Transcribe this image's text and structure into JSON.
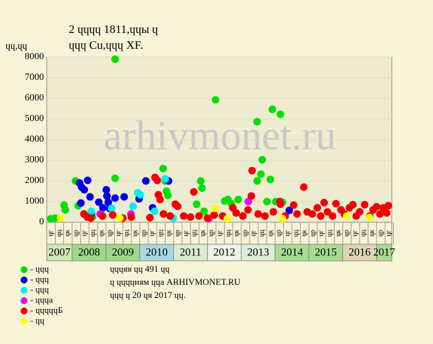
{
  "chart_data": {
    "type": "scatter",
    "title": "2 ɥɥɥɥ 1811,ɥɥы ɥ",
    "subtitle": "ɥɥɥ Cu,ɥɥɥ XF.",
    "y_label": "ɥɥ,ɥɥ",
    "watermark": "arhivmonet.ru",
    "notes": [
      "ɥɥɥяя ɥɥ 491 ɥɥ",
      "ɥ ɥɥɥɥиям ɥɥа ARHIVMONET.RU",
      "ɥɥɥ ɥ 20 ɥя 2017 ɥɥ."
    ],
    "ylim": [
      0,
      8000
    ],
    "yticks": [
      0,
      1000,
      2000,
      3000,
      4000,
      5000,
      6000,
      7000,
      8000
    ],
    "xlim": [
      2007.25,
      2017.45
    ],
    "grid": true,
    "year_bands": [
      {
        "label": "2007",
        "start": 2007.25,
        "end": 2008,
        "color": "#cfe8b8"
      },
      {
        "label": "2008",
        "start": 2008,
        "end": 2009,
        "color": "#9fd88a"
      },
      {
        "label": "2009",
        "start": 2009,
        "end": 2010,
        "color": "#9fd88a"
      },
      {
        "label": "2010",
        "start": 2010,
        "end": 2011,
        "color": "#a8d8e0"
      },
      {
        "label": "2011",
        "start": 2011,
        "end": 2012,
        "color": "#d8ecd0"
      },
      {
        "label": "2012",
        "start": 2012,
        "end": 2013,
        "color": "#eef2ea"
      },
      {
        "label": "2013",
        "start": 2013,
        "end": 2014,
        "color": "#dcecd8"
      },
      {
        "label": "2014",
        "start": 2014,
        "end": 2015,
        "color": "#a8dc90"
      },
      {
        "label": "2015",
        "start": 2015,
        "end": 2016,
        "color": "#a8dc90"
      },
      {
        "label": "2016",
        "start": 2016,
        "end": 2017,
        "color": "#e0d4b4"
      },
      {
        "label": "2017",
        "start": 2017,
        "end": 2017.45,
        "color": "#a8dc90"
      }
    ],
    "quarter_ticks": [
      {
        "value": 2007.375,
        "label": "ɥг"
      },
      {
        "value": 2007.625,
        "label": "ɥц"
      },
      {
        "value": 2007.875,
        "label": "ɥк"
      },
      {
        "value": 2008.125,
        "label": "ɥр"
      },
      {
        "value": 2008.375,
        "label": "ɥг"
      },
      {
        "value": 2008.625,
        "label": "ɥц"
      },
      {
        "value": 2008.875,
        "label": "ɥк"
      },
      {
        "value": 2009.125,
        "label": "ɥр"
      },
      {
        "value": 2009.375,
        "label": "ɥг"
      },
      {
        "value": 2009.625,
        "label": "ɥц"
      },
      {
        "value": 2009.875,
        "label": "ɥк"
      },
      {
        "value": 2010.125,
        "label": "ɥр"
      },
      {
        "value": 2010.375,
        "label": "ɥг"
      },
      {
        "value": 2010.625,
        "label": "ɥц"
      },
      {
        "value": 2010.875,
        "label": "ɥк"
      },
      {
        "value": 2011.125,
        "label": "ɥр"
      },
      {
        "value": 2011.375,
        "label": "ɥг"
      },
      {
        "value": 2011.625,
        "label": "ɥц"
      },
      {
        "value": 2011.875,
        "label": "ɥк"
      },
      {
        "value": 2012.125,
        "label": "ɥр"
      },
      {
        "value": 2012.375,
        "label": "ɥг"
      },
      {
        "value": 2012.625,
        "label": "ɥц"
      },
      {
        "value": 2012.875,
        "label": "ɥк"
      },
      {
        "value": 2013.125,
        "label": "ɥр"
      },
      {
        "value": 2013.375,
        "label": "ɥг"
      },
      {
        "value": 2013.625,
        "label": "ɥц"
      },
      {
        "value": 2013.875,
        "label": "ɥк"
      },
      {
        "value": 2014.125,
        "label": "ɥр"
      },
      {
        "value": 2014.375,
        "label": "ɥг"
      },
      {
        "value": 2014.625,
        "label": "ɥц"
      },
      {
        "value": 2014.875,
        "label": "ɥк"
      },
      {
        "value": 2015.125,
        "label": "ɥр"
      },
      {
        "value": 2015.375,
        "label": "ɥг"
      },
      {
        "value": 2015.625,
        "label": "ɥц"
      },
      {
        "value": 2015.875,
        "label": "ɥк"
      },
      {
        "value": 2016.125,
        "label": "ɥр"
      },
      {
        "value": 2016.375,
        "label": "ɥг"
      },
      {
        "value": 2016.625,
        "label": "ɥц"
      },
      {
        "value": 2016.875,
        "label": "ɥк"
      },
      {
        "value": 2017.125,
        "label": "ɥр"
      },
      {
        "value": 2017.375,
        "label": "ɥг"
      }
    ],
    "series": [
      {
        "name": "- ɥɥɥ",
        "color": "#00e000",
        "x": [
          2007.37,
          2007.76,
          2007.8,
          2008.1,
          2008.18,
          2009.27,
          2009.27,
          2010.69,
          2010.75,
          2010.79,
          2010.83,
          2011.68,
          2011.8,
          2011.84,
          2011.9,
          2012.24,
          2012.51,
          2012.61,
          2012.71,
          2012.91,
          2013.47,
          2013.47,
          2013.58,
          2013.62,
          2013.76,
          2013.86,
          2013.92,
          2014.02,
          2014.16,
          2014.22,
          2007.5,
          2008.6
        ],
        "values": [
          170,
          830,
          600,
          2000,
          800,
          7900,
          2130,
          2600,
          2000,
          1500,
          1300,
          870,
          2000,
          1650,
          530,
          5930,
          1030,
          1100,
          900,
          1100,
          4870,
          2000,
          2330,
          3030,
          1000,
          2070,
          5470,
          1000,
          5230,
          970,
          200,
          250
        ]
      },
      {
        "name": "- ɥɥɥ",
        "color": "#0000e0",
        "x": [
          2008.22,
          2008.28,
          2008.36,
          2008.46,
          2008.26,
          2008.53,
          2008.79,
          2008.91,
          2009.01,
          2009.03,
          2009.07,
          2009.11,
          2009.27,
          2009.54,
          2009.98,
          2010.18,
          2010.38,
          2010.85,
          2014.42,
          2008.57
        ],
        "values": [
          1900,
          1700,
          1570,
          2030,
          930,
          1230,
          970,
          700,
          1570,
          1270,
          970,
          670,
          1170,
          1230,
          1130,
          2000,
          700,
          2000,
          570,
          430
        ]
      },
      {
        "name": "- ɥɥɥ",
        "color": "#00f0f0",
        "x": [
          2008.57,
          2009.17,
          2009.94,
          2010.02,
          2010.75,
          2009.8,
          2010.44,
          2010.99
        ],
        "values": [
          530,
          670,
          1430,
          1330,
          2100,
          770,
          530,
          200
        ]
      },
      {
        "name": "- ɥɥɥа",
        "color": "#f000f0",
        "x": [
          2008.83,
          2009.74,
          2012.04,
          2013.21,
          2009.43
        ],
        "values": [
          400,
          400,
          170,
          1000,
          200
        ]
      },
      {
        "name": "- ɥɥɥɥɥБ",
        "color": "#f00000",
        "x": [
          2008.35,
          2008.45,
          2008.55,
          2008.9,
          2009.2,
          2009.5,
          2009.75,
          2010.3,
          2010.45,
          2010.52,
          2010.55,
          2010.6,
          2010.7,
          2010.9,
          2011.05,
          2011.12,
          2011.3,
          2011.5,
          2011.6,
          2011.75,
          2012.0,
          2012.2,
          2012.45,
          2012.75,
          2012.85,
          2013.05,
          2013.2,
          2013.3,
          2013.32,
          2013.5,
          2013.7,
          2013.95,
          2014.14,
          2014.16,
          2014.3,
          2014.55,
          2014.65,
          2014.85,
          2014.95,
          2015.1,
          2015.25,
          2015.35,
          2015.45,
          2015.55,
          2015.7,
          2015.8,
          2015.95,
          2016.05,
          2016.2,
          2016.3,
          2016.4,
          2016.5,
          2016.65,
          2016.8,
          2016.9,
          2017.0,
          2017.1,
          2017.2,
          2017.3,
          2017.35
        ],
        "values": [
          400,
          250,
          200,
          300,
          350,
          200,
          250,
          220,
          2170,
          2030,
          1330,
          1100,
          400,
          300,
          870,
          770,
          300,
          250,
          1470,
          300,
          200,
          350,
          300,
          700,
          450,
          300,
          600,
          1270,
          2500,
          400,
          300,
          500,
          1000,
          870,
          300,
          830,
          400,
          1700,
          500,
          400,
          700,
          300,
          950,
          500,
          300,
          900,
          600,
          400,
          700,
          850,
          300,
          500,
          850,
          300,
          600,
          750,
          400,
          700,
          450,
          800
        ]
      },
      {
        "name": "- ɥɥ",
        "color": "#ffff00",
        "x": [
          2007.66,
          2009.41,
          2012.22,
          2012.59,
          2014.22,
          2016.12,
          2016.79
        ],
        "values": [
          200,
          200,
          670,
          170,
          170,
          300,
          230
        ]
      }
    ]
  }
}
